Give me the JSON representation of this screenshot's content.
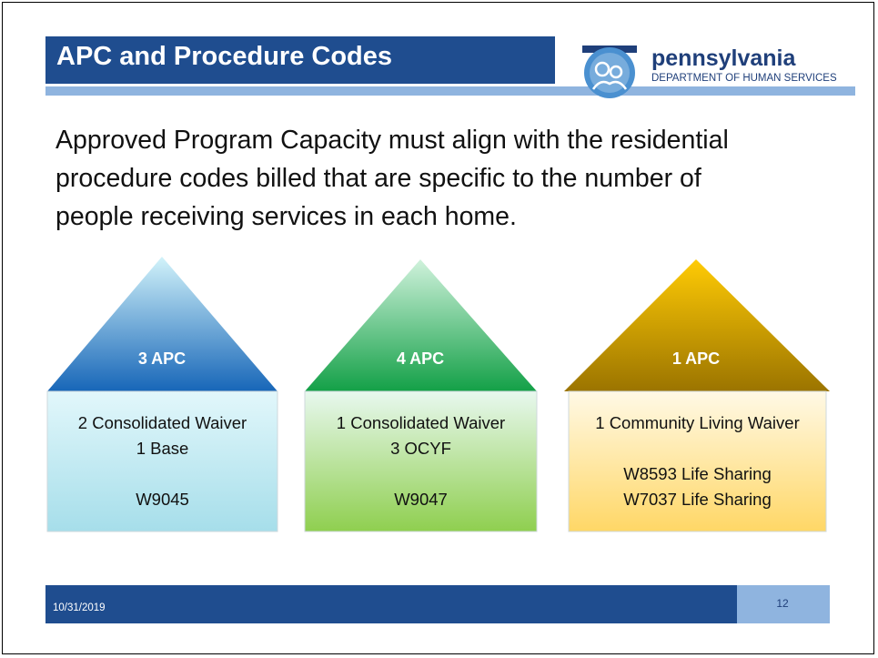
{
  "header": {
    "title": "APC and Procedure Codes"
  },
  "logo": {
    "name": "pennsylvania",
    "department": "DEPARTMENT OF HUMAN SERVICES"
  },
  "body": {
    "lines": [
      "Approved Program Capacity must align with the residential",
      "procedure codes billed that are specific to the number of",
      "people receiving services in each home."
    ]
  },
  "houses": [
    {
      "roof": "3 APC",
      "description": [
        "2 Consolidated Waiver",
        "1 Base"
      ],
      "codes": [
        "W9045"
      ]
    },
    {
      "roof": "4 APC",
      "description": [
        "1 Consolidated Waiver",
        "3 OCYF"
      ],
      "codes": [
        "W9047"
      ]
    },
    {
      "roof": "1 APC",
      "description": [
        "1 Community Living Waiver"
      ],
      "codes": [
        "W8593 Life Sharing",
        "W7037 Life Sharing"
      ]
    }
  ],
  "footer": {
    "date": "10/31/2019",
    "page": "12"
  }
}
